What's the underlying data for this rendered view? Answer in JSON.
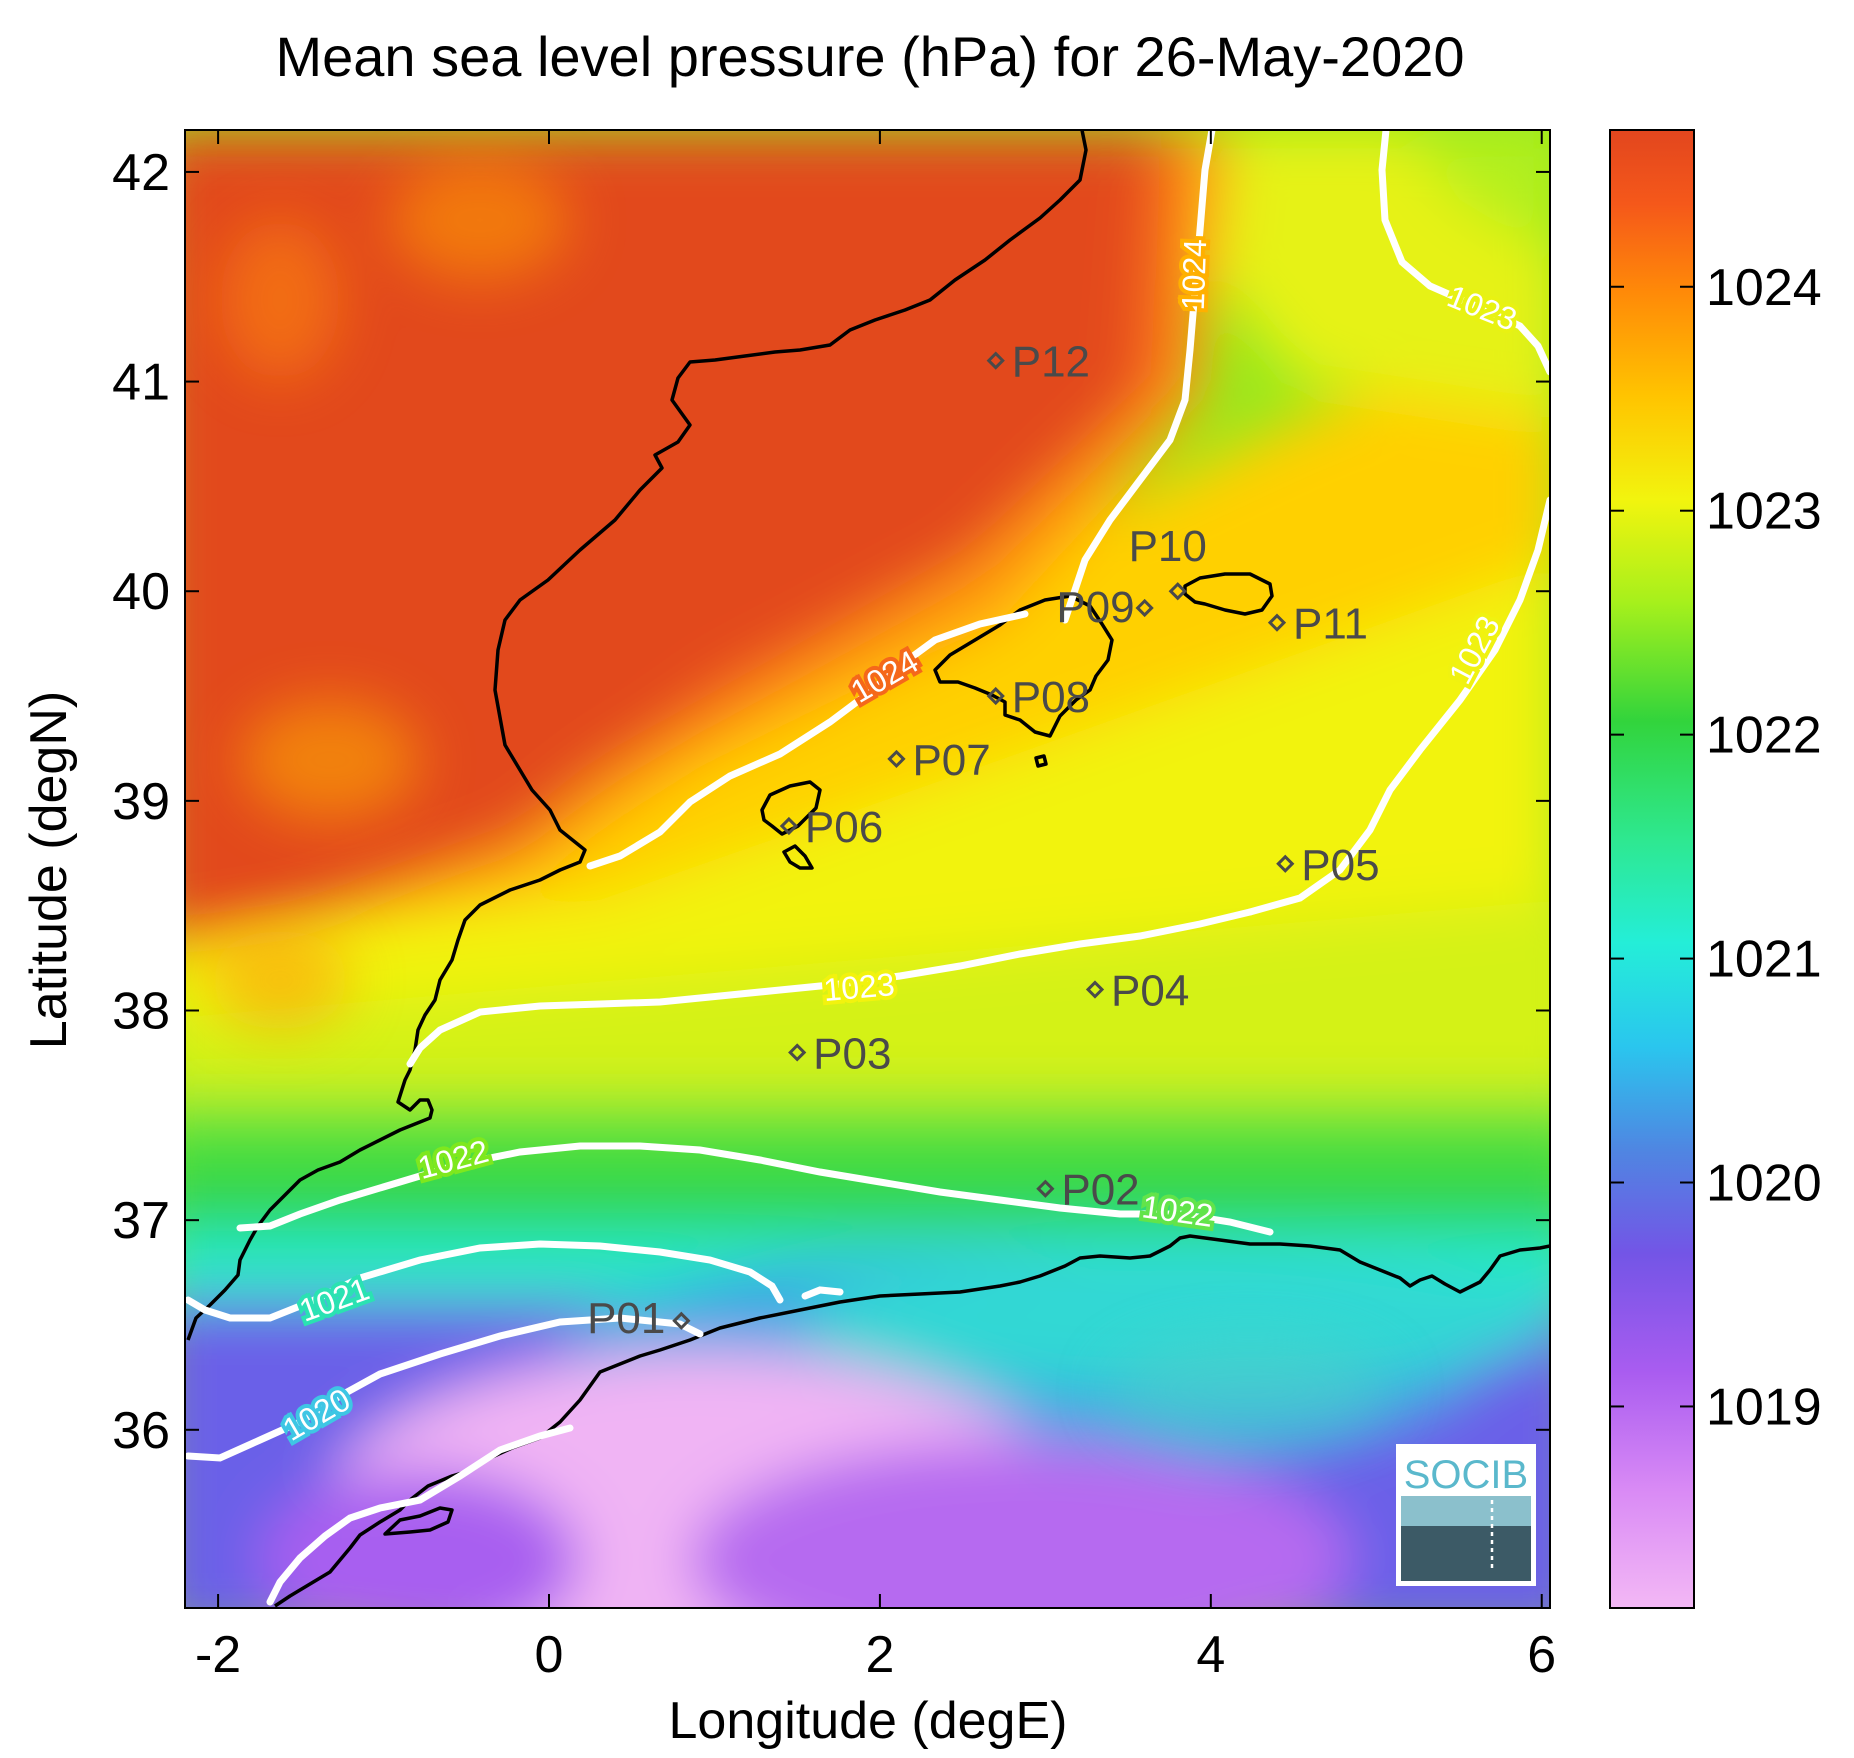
{
  "title": "Mean sea level pressure (hPa) for 26-May-2020",
  "x_axis": {
    "label": "Longitude (degE)",
    "ticks": [
      "-2",
      "0",
      "2",
      "4",
      "6"
    ],
    "range": [
      -2.2,
      6.05
    ]
  },
  "y_axis": {
    "label": "Latitude (degN)",
    "ticks": [
      "36",
      "37",
      "38",
      "39",
      "40",
      "41",
      "42"
    ],
    "range": [
      35.15,
      42.2
    ]
  },
  "colorbar": {
    "ticks": [
      "1019",
      "1020",
      "1021",
      "1022",
      "1023",
      "1024"
    ],
    "range": [
      1018.1,
      1024.7
    ],
    "colors": [
      "#f3b8f5",
      "#c46cf0",
      "#8a4ee8",
      "#5a74e2",
      "#2fc8ee",
      "#22efd6",
      "#2ee860",
      "#32d43c",
      "#a8f21a",
      "#f2f40e",
      "#ffc000",
      "#ff8a08",
      "#f55a12",
      "#e24a1e"
    ]
  },
  "contour_labels": [
    "1024",
    "1023",
    "1024",
    "1023",
    "1023",
    "1022",
    "1022",
    "1021",
    "1020"
  ],
  "stations": [
    {
      "id": "P01",
      "lon": 0.8,
      "lat": 36.52
    },
    {
      "id": "P02",
      "lon": 3.0,
      "lat": 37.15
    },
    {
      "id": "P03",
      "lon": 1.5,
      "lat": 37.8
    },
    {
      "id": "P04",
      "lon": 3.3,
      "lat": 38.1
    },
    {
      "id": "P05",
      "lon": 4.45,
      "lat": 38.7
    },
    {
      "id": "P06",
      "lon": 1.45,
      "lat": 38.88
    },
    {
      "id": "P07",
      "lon": 2.1,
      "lat": 39.2
    },
    {
      "id": "P08",
      "lon": 2.7,
      "lat": 39.5
    },
    {
      "id": "P09",
      "lon": 3.6,
      "lat": 39.92
    },
    {
      "id": "P10",
      "lon": 3.8,
      "lat": 40.0
    },
    {
      "id": "P11",
      "lon": 4.4,
      "lat": 39.85
    },
    {
      "id": "P12",
      "lon": 2.7,
      "lat": 41.1
    }
  ],
  "logo": {
    "text": "SOCIB"
  }
}
